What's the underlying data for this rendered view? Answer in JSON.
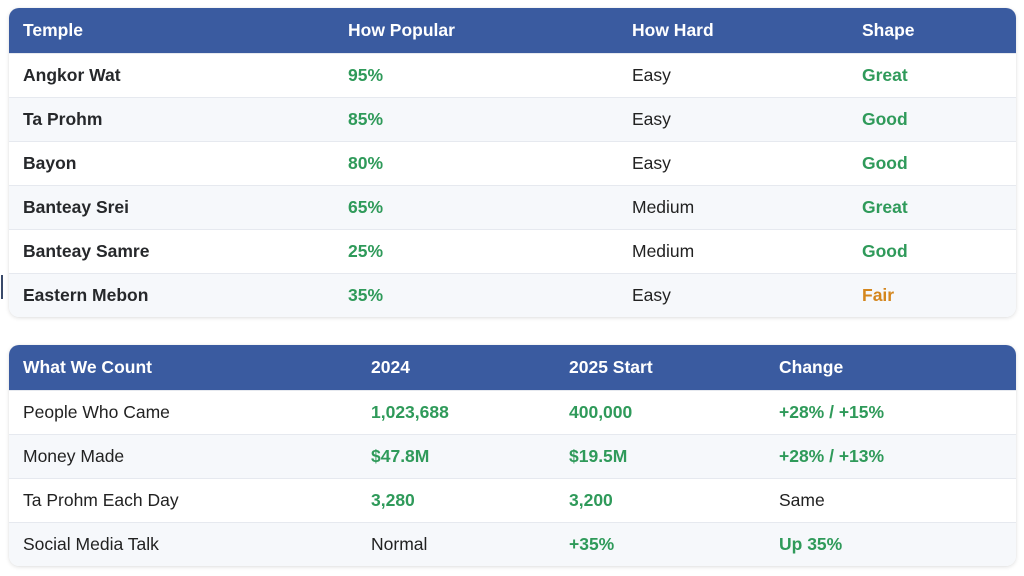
{
  "temples_table": {
    "headers": [
      "Temple",
      "How Popular",
      "How Hard",
      "Shape"
    ],
    "rows": [
      {
        "temple": "Angkor Wat",
        "popularity": "95%",
        "difficulty": "Easy",
        "shape": "Great",
        "shape_status": "green"
      },
      {
        "temple": "Ta Prohm",
        "popularity": "85%",
        "difficulty": "Easy",
        "shape": "Good",
        "shape_status": "green"
      },
      {
        "temple": "Bayon",
        "popularity": "80%",
        "difficulty": "Easy",
        "shape": "Good",
        "shape_status": "green"
      },
      {
        "temple": "Banteay Srei",
        "popularity": "65%",
        "difficulty": "Medium",
        "shape": "Great",
        "shape_status": "green"
      },
      {
        "temple": "Banteay Samre",
        "popularity": "25%",
        "difficulty": "Medium",
        "shape": "Good",
        "shape_status": "green"
      },
      {
        "temple": "Eastern Mebon",
        "popularity": "35%",
        "difficulty": "Easy",
        "shape": "Fair",
        "shape_status": "orange"
      }
    ]
  },
  "metrics_table": {
    "headers": [
      "What We Count",
      "2024",
      "2025 Start",
      "Change"
    ],
    "rows": [
      {
        "metric": "People Who Came",
        "y2024": "1,023,688",
        "y2024_status": "green",
        "y2025": "400,000",
        "y2025_status": "green",
        "change": "+28% / +15%",
        "change_status": "green"
      },
      {
        "metric": "Money Made",
        "y2024": "$47.8M",
        "y2024_status": "green",
        "y2025": "$19.5M",
        "y2025_status": "green",
        "change": "+28% / +13%",
        "change_status": "green"
      },
      {
        "metric": "Ta Prohm Each Day",
        "y2024": "3,280",
        "y2024_status": "green",
        "y2025": "3,200",
        "y2025_status": "green",
        "change": "Same",
        "change_status": "plain"
      },
      {
        "metric": "Social Media Talk",
        "y2024": "Normal",
        "y2024_status": "plain",
        "y2025": "+35%",
        "y2025_status": "green",
        "change": "Up 35%",
        "change_status": "green"
      }
    ]
  },
  "colors": {
    "header_bg": "#3a5ba0",
    "green": "#2f9a5a",
    "orange": "#d4861d"
  }
}
